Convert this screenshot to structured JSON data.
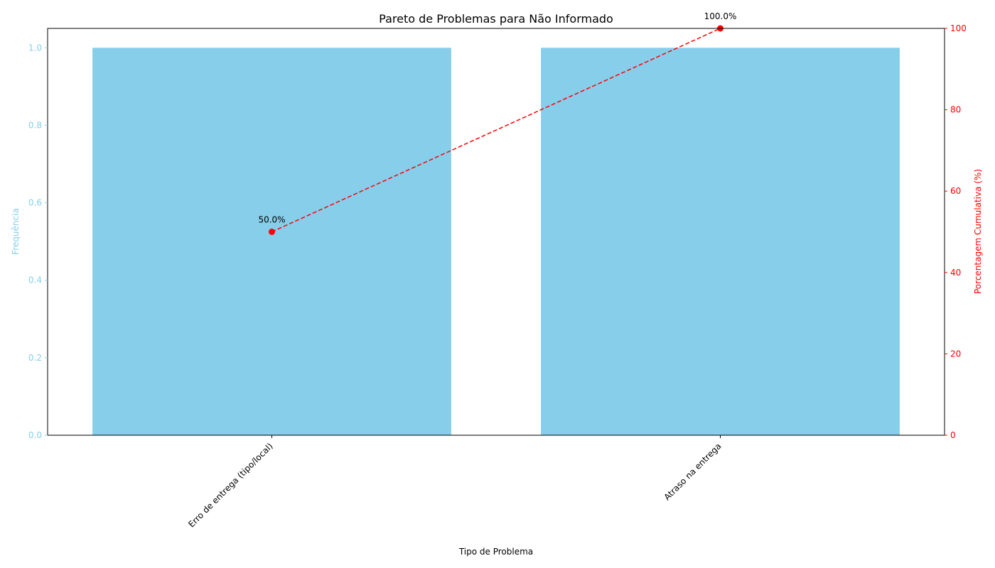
{
  "chart_data": {
    "type": "bar",
    "title": "Pareto de Problemas para Não Informado",
    "xlabel": "Tipo de Problema",
    "ylabel": "Frequência",
    "y2label": "Porcentagem Cumulativa (%)",
    "categories": [
      "Erro de entrega (tipo/local)",
      "Atraso na entrega"
    ],
    "series": [
      {
        "name": "",
        "kind": "bar",
        "axis": "left",
        "values": [
          1,
          1
        ],
        "color": "#87CEEB"
      },
      {
        "name": "",
        "kind": "line",
        "axis": "right",
        "values": [
          50.0,
          100.0
        ],
        "color": "#FF0000",
        "dashed": true,
        "markers": true
      }
    ],
    "point_labels": [
      "50.0%",
      "100.0%"
    ],
    "ylim": [
      0,
      1.05
    ],
    "y2lim": [
      0,
      100
    ],
    "y_ticks": [
      0.0,
      0.2,
      0.4,
      0.6,
      0.8,
      1.0
    ],
    "y_tick_labels": [
      "0.0",
      "0.2",
      "0.4",
      "0.6",
      "0.8",
      "1.0"
    ],
    "y2_ticks": [
      0,
      20,
      40,
      60,
      80,
      100
    ],
    "y2_tick_labels": [
      "0",
      "20",
      "40",
      "60",
      "80",
      "100"
    ],
    "grid": false,
    "legend": "none",
    "colors": {
      "left_axis": "#87CEEB",
      "right_axis": "#FF0000",
      "text": "#000000"
    }
  }
}
